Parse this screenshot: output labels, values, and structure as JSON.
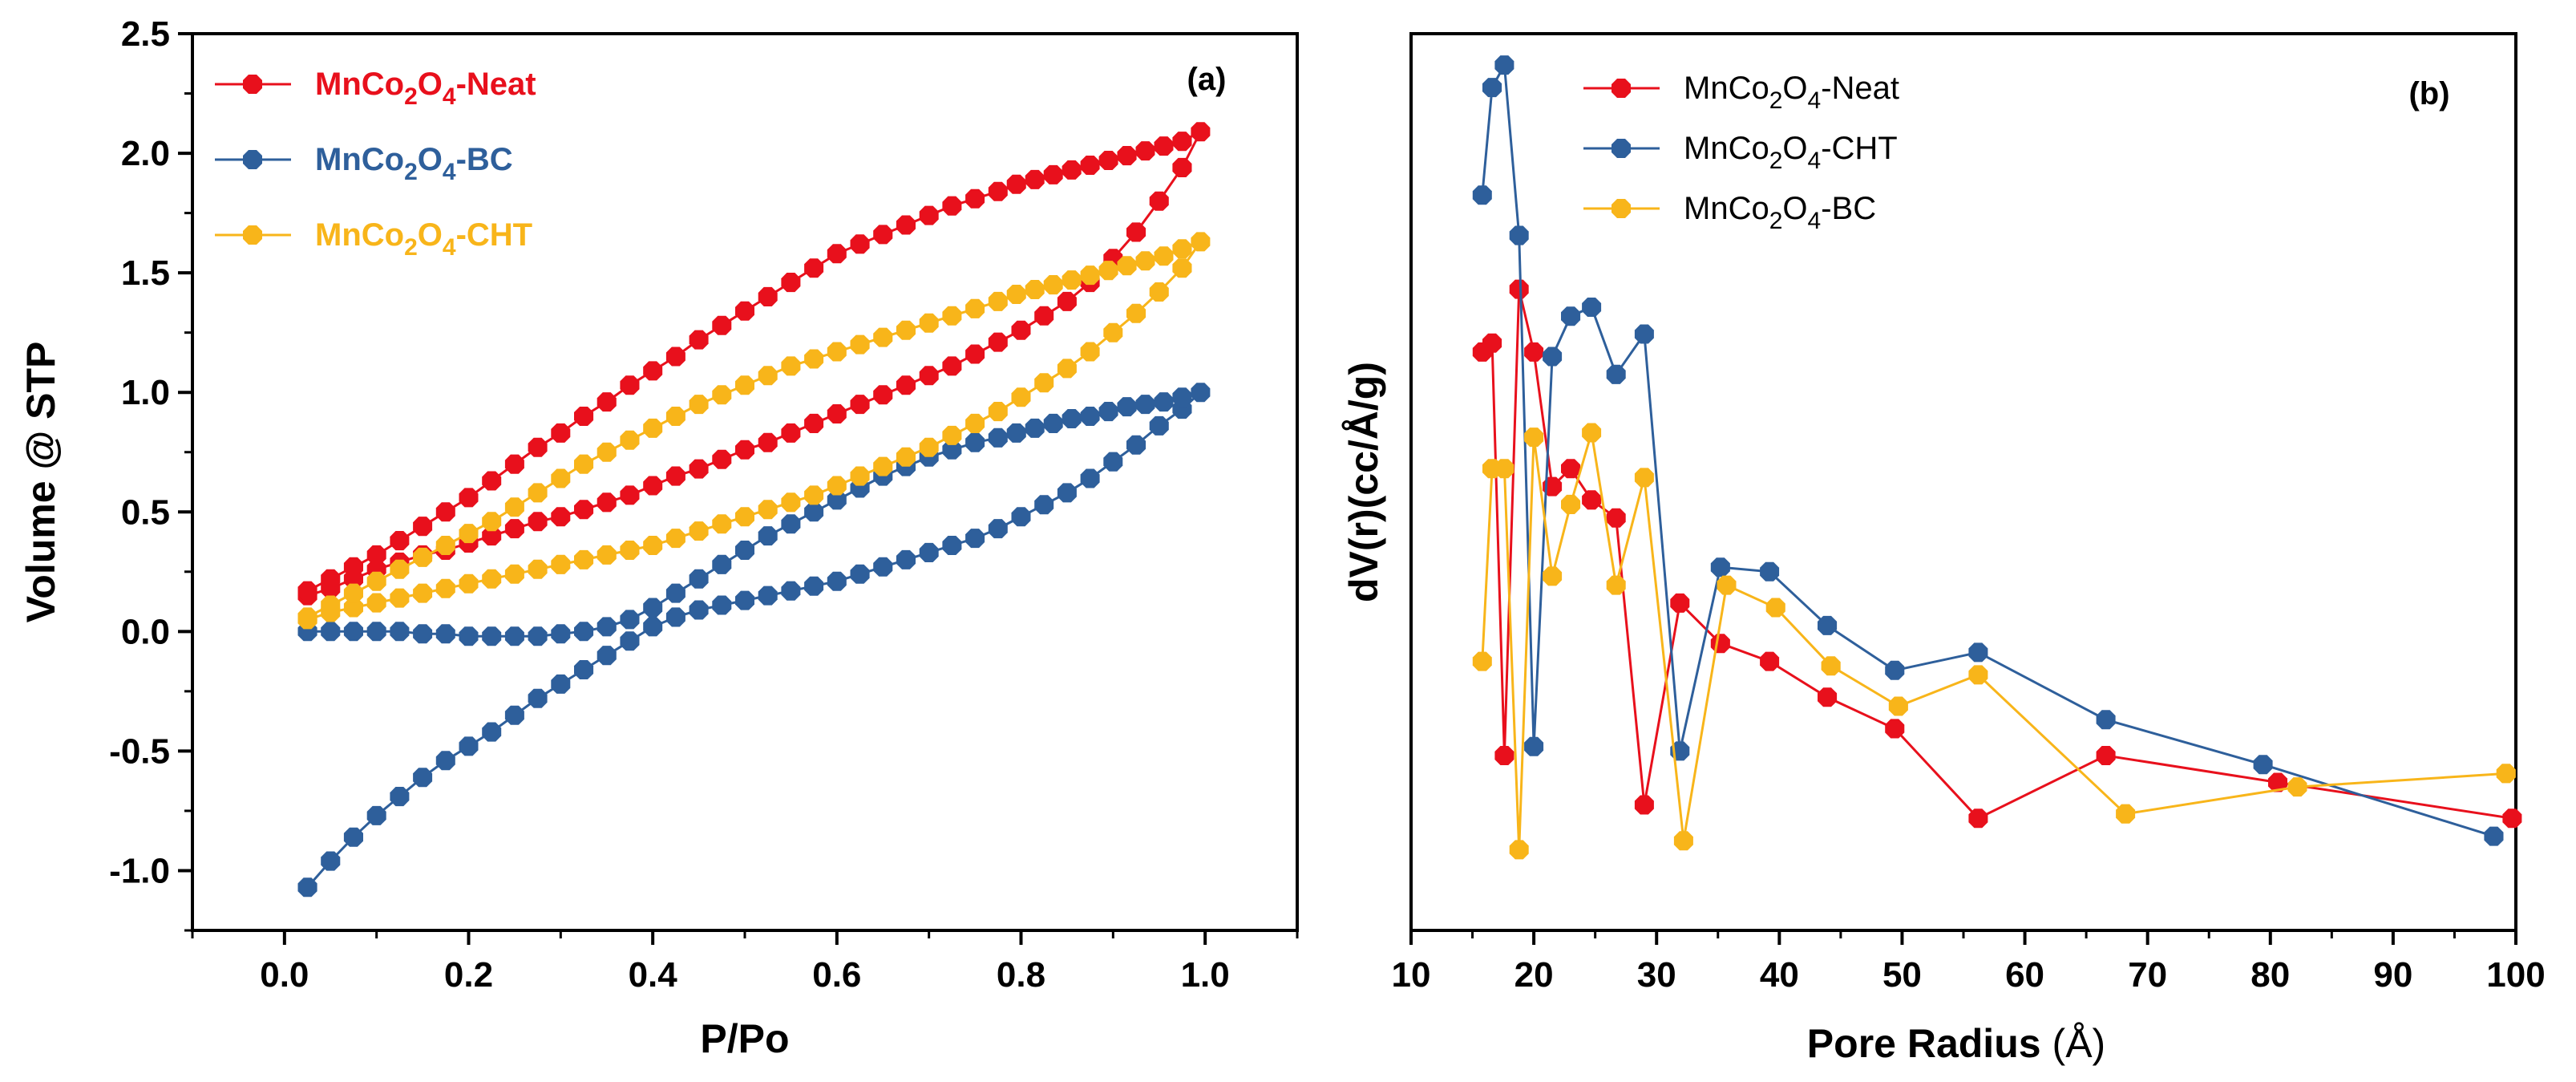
{
  "chart_data": [
    {
      "type": "line",
      "panel_label": "(a)",
      "title": "",
      "xlabel": "P/Po",
      "ylabel": "Volume @ STP",
      "xlim": [
        -0.1,
        1.1
      ],
      "ylim": [
        -1.25,
        2.5
      ],
      "xticks": [
        0.0,
        0.2,
        0.4,
        0.6,
        0.8,
        1.0
      ],
      "xtick_labels": [
        "0.0",
        "0.2",
        "0.4",
        "0.6",
        "0.8",
        "1.0"
      ],
      "yticks": [
        -1.0,
        -0.5,
        0.0,
        0.5,
        1.0,
        1.5,
        2.0,
        2.5
      ],
      "ytick_labels": [
        "-1.0",
        "-0.5",
        "0.0",
        "0.5",
        "1.0",
        "1.5",
        "2.0",
        "2.5"
      ],
      "legend_position": "top-left",
      "series": [
        {
          "name": "MnCo2O4-Neat",
          "legend_parts": [
            "MnCo",
            "2",
            "O",
            "4",
            "-Neat"
          ],
          "color": "#e8101c",
          "x": [
            0.025,
            0.05,
            0.075,
            0.1,
            0.125,
            0.15,
            0.175,
            0.2,
            0.225,
            0.25,
            0.275,
            0.3,
            0.325,
            0.35,
            0.375,
            0.4,
            0.425,
            0.45,
            0.475,
            0.5,
            0.525,
            0.55,
            0.575,
            0.6,
            0.625,
            0.65,
            0.675,
            0.7,
            0.725,
            0.75,
            0.775,
            0.8,
            0.825,
            0.85,
            0.875,
            0.9,
            0.925,
            0.95,
            0.975,
            0.995,
            0.975,
            0.955,
            0.935,
            0.915,
            0.895,
            0.875,
            0.855,
            0.835,
            0.815,
            0.795,
            0.775,
            0.75,
            0.725,
            0.7,
            0.675,
            0.65,
            0.625,
            0.6,
            0.575,
            0.55,
            0.525,
            0.5,
            0.475,
            0.45,
            0.425,
            0.4,
            0.375,
            0.35,
            0.325,
            0.3,
            0.275,
            0.25,
            0.225,
            0.2,
            0.175,
            0.15,
            0.125,
            0.1,
            0.075,
            0.05,
            0.025
          ],
          "y": [
            0.15,
            0.18,
            0.22,
            0.26,
            0.29,
            0.32,
            0.34,
            0.37,
            0.4,
            0.43,
            0.46,
            0.48,
            0.51,
            0.54,
            0.57,
            0.61,
            0.65,
            0.68,
            0.72,
            0.76,
            0.79,
            0.83,
            0.87,
            0.91,
            0.95,
            0.99,
            1.03,
            1.07,
            1.11,
            1.16,
            1.21,
            1.26,
            1.32,
            1.38,
            1.46,
            1.56,
            1.67,
            1.8,
            1.94,
            2.09,
            2.05,
            2.03,
            2.01,
            1.99,
            1.97,
            1.95,
            1.93,
            1.91,
            1.89,
            1.87,
            1.84,
            1.81,
            1.78,
            1.74,
            1.7,
            1.66,
            1.62,
            1.58,
            1.52,
            1.46,
            1.4,
            1.34,
            1.28,
            1.22,
            1.15,
            1.09,
            1.03,
            0.96,
            0.9,
            0.83,
            0.77,
            0.7,
            0.63,
            0.56,
            0.5,
            0.44,
            0.38,
            0.32,
            0.27,
            0.22,
            0.17
          ]
        },
        {
          "name": "MnCo2O4-BC",
          "legend_parts": [
            "MnCo",
            "2",
            "O",
            "4",
            "-BC"
          ],
          "color": "#2e5f9b",
          "x": [
            0.025,
            0.05,
            0.075,
            0.1,
            0.125,
            0.15,
            0.175,
            0.2,
            0.225,
            0.25,
            0.275,
            0.3,
            0.325,
            0.35,
            0.375,
            0.4,
            0.425,
            0.45,
            0.475,
            0.5,
            0.525,
            0.55,
            0.575,
            0.6,
            0.625,
            0.65,
            0.675,
            0.7,
            0.725,
            0.75,
            0.775,
            0.8,
            0.825,
            0.85,
            0.875,
            0.9,
            0.925,
            0.95,
            0.975,
            0.995,
            0.975,
            0.955,
            0.935,
            0.915,
            0.895,
            0.875,
            0.855,
            0.835,
            0.815,
            0.795,
            0.775,
            0.75,
            0.725,
            0.7,
            0.675,
            0.65,
            0.625,
            0.6,
            0.575,
            0.55,
            0.525,
            0.5,
            0.475,
            0.45,
            0.425,
            0.4,
            0.375,
            0.35,
            0.325,
            0.3,
            0.275,
            0.25,
            0.225,
            0.2,
            0.175,
            0.15,
            0.125,
            0.1,
            0.075,
            0.05,
            0.025
          ],
          "y": [
            -1.07,
            -0.96,
            -0.86,
            -0.77,
            -0.69,
            -0.61,
            -0.54,
            -0.48,
            -0.42,
            -0.35,
            -0.28,
            -0.22,
            -0.16,
            -0.1,
            -0.04,
            0.02,
            0.06,
            0.09,
            0.11,
            0.13,
            0.15,
            0.17,
            0.19,
            0.21,
            0.24,
            0.27,
            0.3,
            0.33,
            0.36,
            0.39,
            0.43,
            0.48,
            0.53,
            0.58,
            0.64,
            0.71,
            0.78,
            0.86,
            0.93,
            1.0,
            0.98,
            0.96,
            0.95,
            0.94,
            0.92,
            0.9,
            0.89,
            0.87,
            0.85,
            0.83,
            0.81,
            0.79,
            0.76,
            0.73,
            0.69,
            0.65,
            0.6,
            0.55,
            0.5,
            0.45,
            0.4,
            0.34,
            0.28,
            0.22,
            0.16,
            0.1,
            0.05,
            0.02,
            0.0,
            -0.01,
            -0.02,
            -0.02,
            -0.02,
            -0.02,
            -0.01,
            -0.01,
            0.0,
            0.0,
            0.0,
            0.0,
            0.0
          ]
        },
        {
          "name": "MnCo2O4-CHT",
          "legend_parts": [
            "MnCo",
            "2",
            "O",
            "4",
            "-CHT"
          ],
          "color": "#f8b51a",
          "x": [
            0.025,
            0.05,
            0.075,
            0.1,
            0.125,
            0.15,
            0.175,
            0.2,
            0.225,
            0.25,
            0.275,
            0.3,
            0.325,
            0.35,
            0.375,
            0.4,
            0.425,
            0.45,
            0.475,
            0.5,
            0.525,
            0.55,
            0.575,
            0.6,
            0.625,
            0.65,
            0.675,
            0.7,
            0.725,
            0.75,
            0.775,
            0.8,
            0.825,
            0.85,
            0.875,
            0.9,
            0.925,
            0.95,
            0.975,
            0.995,
            0.975,
            0.955,
            0.935,
            0.915,
            0.895,
            0.875,
            0.855,
            0.835,
            0.815,
            0.795,
            0.775,
            0.75,
            0.725,
            0.7,
            0.675,
            0.65,
            0.625,
            0.6,
            0.575,
            0.55,
            0.525,
            0.5,
            0.475,
            0.45,
            0.425,
            0.4,
            0.375,
            0.35,
            0.325,
            0.3,
            0.275,
            0.25,
            0.225,
            0.2,
            0.175,
            0.15,
            0.125,
            0.1,
            0.075,
            0.05,
            0.025
          ],
          "y": [
            0.05,
            0.08,
            0.1,
            0.12,
            0.14,
            0.16,
            0.18,
            0.2,
            0.22,
            0.24,
            0.26,
            0.28,
            0.3,
            0.32,
            0.34,
            0.36,
            0.39,
            0.42,
            0.45,
            0.48,
            0.51,
            0.54,
            0.57,
            0.61,
            0.65,
            0.69,
            0.73,
            0.77,
            0.82,
            0.87,
            0.92,
            0.98,
            1.04,
            1.1,
            1.17,
            1.25,
            1.33,
            1.42,
            1.52,
            1.63,
            1.6,
            1.57,
            1.55,
            1.53,
            1.51,
            1.49,
            1.47,
            1.45,
            1.43,
            1.41,
            1.38,
            1.35,
            1.32,
            1.29,
            1.26,
            1.23,
            1.2,
            1.17,
            1.14,
            1.11,
            1.07,
            1.03,
            0.99,
            0.95,
            0.9,
            0.85,
            0.8,
            0.75,
            0.7,
            0.64,
            0.58,
            0.52,
            0.46,
            0.41,
            0.36,
            0.31,
            0.26,
            0.21,
            0.16,
            0.11,
            0.06
          ]
        }
      ]
    },
    {
      "type": "line",
      "panel_label": "(b)",
      "title": "",
      "xlabel": "Pore Radius",
      "xlabel_unit": "(Å)",
      "ylabel": "dV(r)(cc/Å/g)",
      "xlim": [
        10,
        100
      ],
      "ylim": [
        0,
        100
      ],
      "y_axis_ticks": "none",
      "xticks": [
        10,
        20,
        30,
        40,
        50,
        60,
        70,
        80,
        90,
        100
      ],
      "xtick_labels": [
        "10",
        "20",
        "30",
        "40",
        "50",
        "60",
        "70",
        "80",
        "90",
        "100"
      ],
      "legend_position": "top-center",
      "series": [
        {
          "name": "MnCo2O4-Neat",
          "legend_parts": [
            "MnCo",
            "2",
            "O",
            "4",
            "-Neat"
          ],
          "color": "#e8101c",
          "x": [
            15.8,
            16.6,
            17.6,
            18.8,
            20.0,
            21.5,
            23.0,
            24.7,
            26.7,
            29.0,
            31.9,
            35.2,
            39.2,
            43.9,
            49.4,
            56.2,
            66.6,
            80.6,
            99.7
          ],
          "y": [
            64.5,
            65.5,
            19.5,
            71.5,
            64.5,
            49.5,
            51.5,
            48.0,
            46.0,
            14.0,
            36.5,
            32.0,
            30.0,
            26.0,
            22.5,
            12.5,
            19.5,
            16.5,
            12.5
          ]
        },
        {
          "name": "MnCo2O4-CHT",
          "legend_parts": [
            "MnCo",
            "2",
            "O",
            "4",
            "-CHT"
          ],
          "color": "#2e5f9b",
          "x": [
            15.8,
            16.6,
            17.6,
            18.8,
            20.0,
            21.5,
            23.0,
            24.7,
            26.7,
            29.0,
            31.9,
            35.2,
            39.2,
            43.9,
            49.4,
            56.2,
            66.6,
            79.4,
            98.2
          ],
          "y": [
            82.0,
            94.0,
            96.5,
            77.5,
            20.5,
            64.0,
            68.5,
            69.5,
            62.0,
            66.5,
            20.0,
            40.5,
            40.0,
            34.0,
            29.0,
            31.0,
            23.5,
            18.5,
            10.5
          ]
        },
        {
          "name": "MnCo2O4-BC",
          "legend_parts": [
            "MnCo",
            "2",
            "O",
            "4",
            "-BC"
          ],
          "color": "#f8b51a",
          "x": [
            15.8,
            16.6,
            17.6,
            18.8,
            20.0,
            21.5,
            23.0,
            24.7,
            26.7,
            29.0,
            32.2,
            35.7,
            39.7,
            44.2,
            49.7,
            56.2,
            68.2,
            82.2,
            99.2
          ],
          "y": [
            30.0,
            51.5,
            51.5,
            9.0,
            55.0,
            39.5,
            47.5,
            55.5,
            38.5,
            50.5,
            10.0,
            38.5,
            36.0,
            29.5,
            25.0,
            28.5,
            13.0,
            16.0,
            17.5
          ]
        }
      ]
    }
  ]
}
